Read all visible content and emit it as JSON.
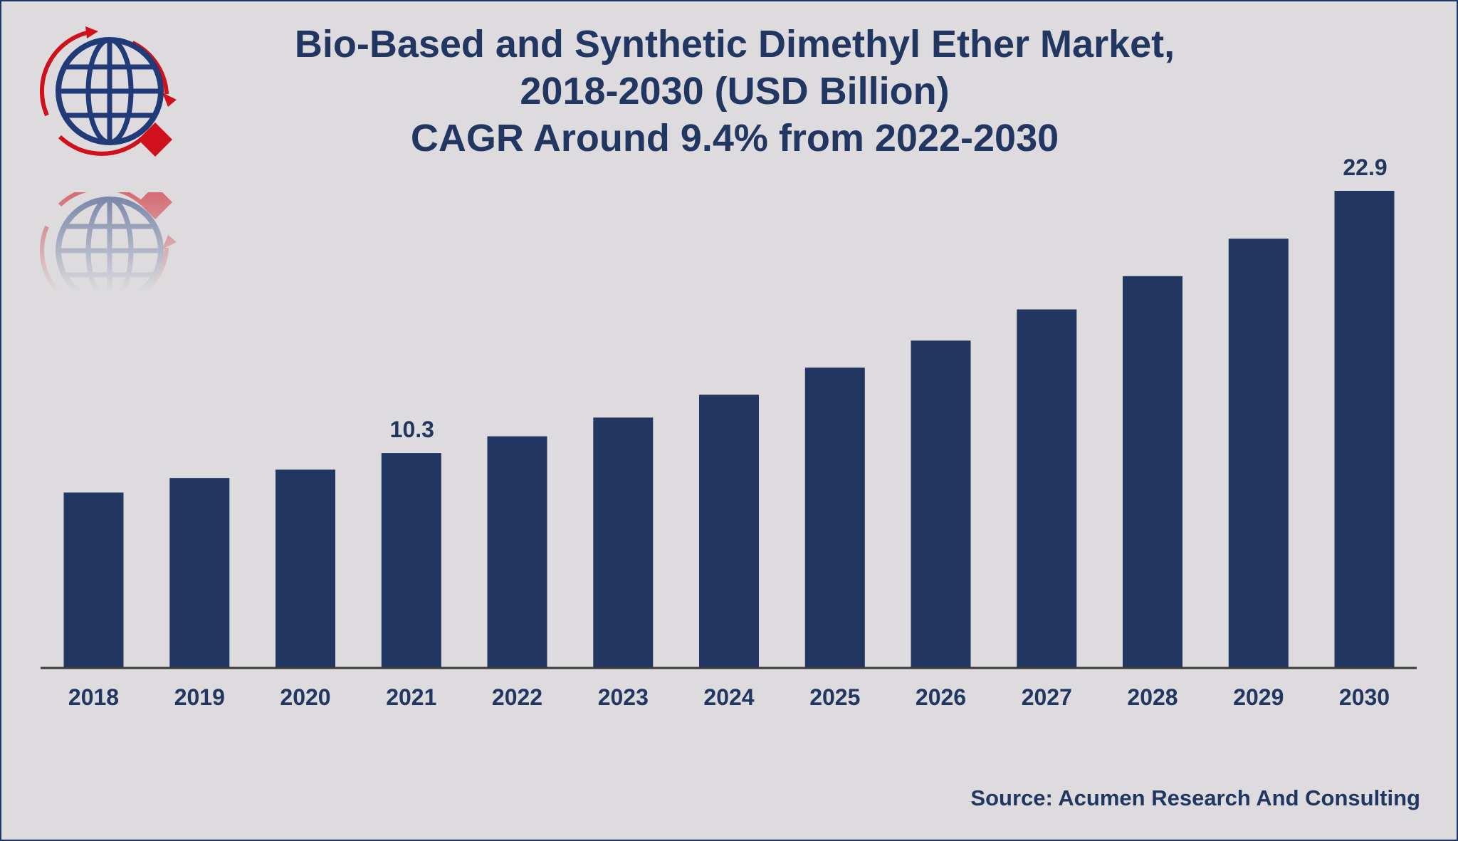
{
  "colors": {
    "bar": "#213762",
    "text": "#213762",
    "axis": "#3a3a3a",
    "background": "#dddbde",
    "logo_red": "#d0101a",
    "logo_blue": "#213a78"
  },
  "logo": {
    "icon": "globe-logo-icon"
  },
  "chart_data": {
    "type": "bar",
    "title": "Bio-Based and Synthetic Dimethyl Ether Market,",
    "subtitle": "2018-2030 (USD Billion)",
    "subtitle2": "CAGR Around 9.4% from 2022-2030",
    "categories": [
      "2018",
      "2019",
      "2020",
      "2021",
      "2022",
      "2023",
      "2024",
      "2025",
      "2026",
      "2027",
      "2028",
      "2029",
      "2030"
    ],
    "values": [
      8.4,
      9.1,
      9.5,
      10.3,
      11.1,
      12.0,
      13.1,
      14.4,
      15.7,
      17.2,
      18.8,
      20.6,
      22.9
    ],
    "data_labels": [
      "",
      "",
      "",
      "10.3",
      "",
      "",
      "",
      "",
      "",
      "",
      "",
      "",
      "22.9"
    ],
    "xlabel": "",
    "ylabel": "",
    "ylim": [
      0,
      22.9
    ],
    "grid": false,
    "legend": "none"
  },
  "source": "Source: Acumen Research And Consulting"
}
